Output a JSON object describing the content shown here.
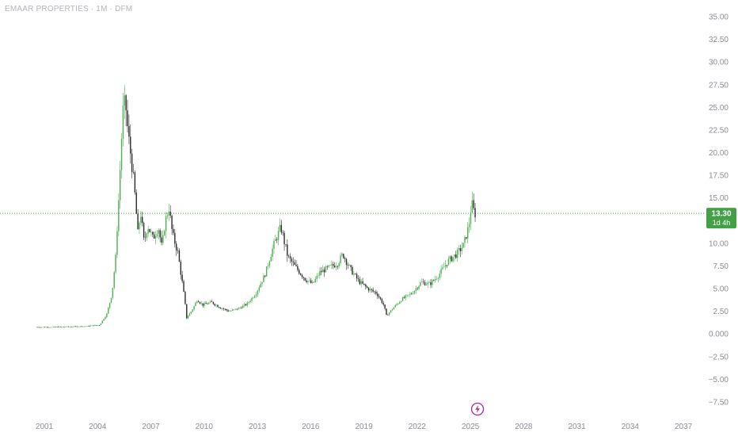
{
  "header": {
    "title": "EMAAR PROPERTIES · 1M · DFM"
  },
  "colors": {
    "up": "#4caf50",
    "down": "#2a2a2a",
    "price_line": "#43a047",
    "badge": "#43a047",
    "event_icon": "#9c27b0",
    "axis_text": "#8a8d96"
  },
  "price_badge": {
    "price": "13.30",
    "countdown": "1d 4h"
  },
  "event_marker": {
    "icon": "lightning-icon",
    "x": 2025.4
  },
  "chart_data": {
    "type": "line",
    "title": "EMAAR PROPERTIES · 1M · DFM",
    "xlabel": "",
    "ylabel": "",
    "xlim": [
      1998.5,
      2038.2
    ],
    "ylim": [
      -7.5,
      35
    ],
    "x_ticks": [
      "2001",
      "2004",
      "2007",
      "2010",
      "2013",
      "2016",
      "2019",
      "2022",
      "2025",
      "2028",
      "2031",
      "2034",
      "2037"
    ],
    "y_ticks": [
      "35.00",
      "32.50",
      "30.00",
      "27.50",
      "25.00",
      "22.50",
      "20.00",
      "17.50",
      "15.00",
      "12.50",
      "10.00",
      "7.50",
      "5.00",
      "2.50",
      "0.000",
      "−2.50",
      "−5.00",
      "−7.50"
    ],
    "grid": false,
    "last_price": 13.3,
    "series": [
      {
        "values": [
          [
            2000.6,
            0.75
          ],
          [
            2001.5,
            0.75
          ],
          [
            2002.5,
            0.8
          ],
          [
            2003.5,
            0.85
          ],
          [
            2004.2,
            1.0
          ],
          [
            2004.6,
            2.2
          ],
          [
            2004.9,
            4.5
          ],
          [
            2005.1,
            8.5
          ],
          [
            2005.3,
            16.0
          ],
          [
            2005.5,
            24.5
          ],
          [
            2005.65,
            25.6
          ],
          [
            2005.8,
            22.0
          ],
          [
            2006.0,
            19.0
          ],
          [
            2006.2,
            15.0
          ],
          [
            2006.35,
            11.0
          ],
          [
            2006.5,
            13.5
          ],
          [
            2006.7,
            10.0
          ],
          [
            2006.9,
            12.0
          ],
          [
            2007.2,
            10.5
          ],
          [
            2007.5,
            11.8
          ],
          [
            2007.7,
            9.5
          ],
          [
            2007.9,
            12.5
          ],
          [
            2008.1,
            13.9
          ],
          [
            2008.3,
            11.0
          ],
          [
            2008.6,
            9.0
          ],
          [
            2008.9,
            5.0
          ],
          [
            2009.1,
            1.8
          ],
          [
            2009.4,
            2.6
          ],
          [
            2009.7,
            3.8
          ],
          [
            2010.0,
            3.2
          ],
          [
            2010.5,
            3.5
          ],
          [
            2011.0,
            2.9
          ],
          [
            2011.5,
            2.5
          ],
          [
            2012.0,
            2.8
          ],
          [
            2012.5,
            3.3
          ],
          [
            2013.0,
            4.5
          ],
          [
            2013.5,
            6.5
          ],
          [
            2014.0,
            9.8
          ],
          [
            2014.4,
            11.8
          ],
          [
            2014.8,
            8.5
          ],
          [
            2015.3,
            7.2
          ],
          [
            2015.8,
            6.0
          ],
          [
            2016.2,
            5.5
          ],
          [
            2016.6,
            6.8
          ],
          [
            2017.1,
            7.3
          ],
          [
            2017.6,
            7.8
          ],
          [
            2017.9,
            8.8
          ],
          [
            2018.3,
            7.2
          ],
          [
            2018.8,
            5.8
          ],
          [
            2019.3,
            5.0
          ],
          [
            2019.8,
            4.5
          ],
          [
            2020.2,
            3.2
          ],
          [
            2020.35,
            2.0
          ],
          [
            2020.7,
            2.8
          ],
          [
            2021.2,
            3.8
          ],
          [
            2021.8,
            4.5
          ],
          [
            2022.3,
            5.7
          ],
          [
            2022.8,
            5.5
          ],
          [
            2023.3,
            6.5
          ],
          [
            2023.8,
            8.0
          ],
          [
            2024.3,
            8.8
          ],
          [
            2024.7,
            9.8
          ],
          [
            2025.0,
            12.0
          ],
          [
            2025.15,
            14.5
          ],
          [
            2025.3,
            13.3
          ]
        ]
      }
    ]
  }
}
